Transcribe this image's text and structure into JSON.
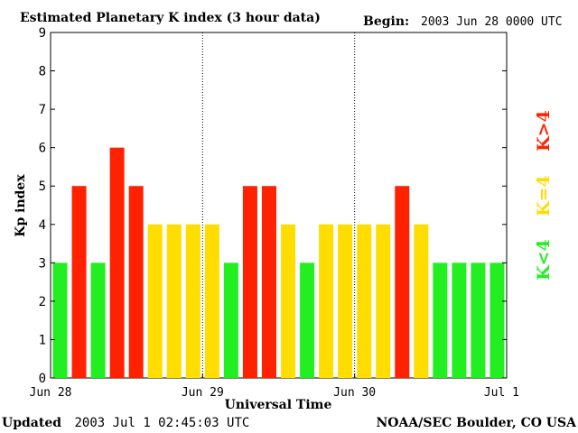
{
  "chart_data": {
    "type": "bar",
    "title": "Estimated Planetary K index (3 hour data)",
    "begin_label": "Begin:",
    "begin_value": "2003 Jun 28 0000 UTC",
    "xlabel": "Universal Time",
    "ylabel": "Kp index",
    "ylim": [
      0,
      9
    ],
    "yticks": [
      "0",
      "1",
      "2",
      "3",
      "4",
      "5",
      "6",
      "7",
      "8",
      "9"
    ],
    "xticks": [
      "Jun 28",
      "Jun 29",
      "Jun 30",
      "Jul 1"
    ],
    "values": [
      3,
      5,
      3,
      6,
      5,
      4,
      4,
      4,
      4,
      3,
      5,
      5,
      4,
      3,
      4,
      4,
      4,
      4,
      5,
      4,
      3,
      3,
      3,
      3
    ],
    "colors": {
      "low": "#22ee22",
      "mid": "#ffdd00",
      "high": "#ff2200"
    },
    "legend": [
      {
        "label": "K<4",
        "color": "#22ee22"
      },
      {
        "label": "K=4",
        "color": "#ffdd00"
      },
      {
        "label": "K>4",
        "color": "#ff2200"
      }
    ],
    "grid": false
  },
  "footer": {
    "updated_label": "Updated",
    "updated_value": "2003 Jul  1 02:45:03 UTC",
    "source": "NOAA/SEC Boulder, CO USA"
  }
}
